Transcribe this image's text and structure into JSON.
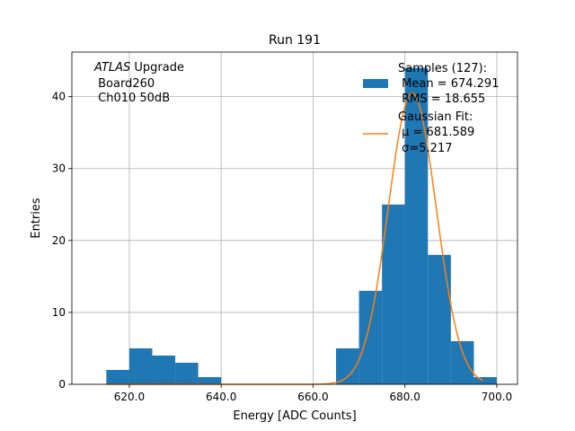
{
  "chart_data": {
    "type": "bar",
    "title": "Run 191",
    "xlabel": "Energy [ADC Counts]",
    "ylabel": "Entries",
    "xlim": [
      607.5,
      704.5
    ],
    "ylim": [
      0,
      46.2
    ],
    "grid": true,
    "xticks": [
      620,
      640,
      660,
      680,
      700
    ],
    "xtick_labels": [
      "620.0",
      "640.0",
      "660.0",
      "680.0",
      "700.0"
    ],
    "yticks": [
      0,
      10,
      20,
      30,
      40
    ],
    "ytick_labels": [
      "0",
      "10",
      "20",
      "30",
      "40"
    ],
    "histogram": {
      "bin_edges": [
        615,
        620,
        625,
        630,
        635,
        640,
        645,
        650,
        655,
        660,
        665,
        670,
        675,
        680,
        685,
        690,
        695,
        700
      ],
      "counts": [
        2,
        5,
        4,
        3,
        1,
        0,
        0,
        0,
        0,
        0,
        5,
        13,
        25,
        44,
        18,
        6,
        1
      ],
      "color": "#1f77b4"
    },
    "fit": {
      "type": "gaussian",
      "mu": 681.589,
      "sigma": 5.217,
      "amplitude": 40.5,
      "range": [
        615,
        697
      ],
      "color": "#ff7f0e"
    },
    "annotation": {
      "italic_part": "ATLAS",
      "rest_line1": " Upgrade",
      "line2": " Board260",
      "line3": " Ch010 50dB"
    },
    "legend": {
      "position": "top-right",
      "entries": [
        {
          "kind": "patch",
          "lines": [
            "Samples (127):",
            " Mean = 674.291",
            " RMS = 18.655"
          ]
        },
        {
          "kind": "line",
          "lines": [
            "Gaussian Fit:",
            " μ = 681.589",
            " σ=5.217"
          ]
        }
      ]
    }
  }
}
